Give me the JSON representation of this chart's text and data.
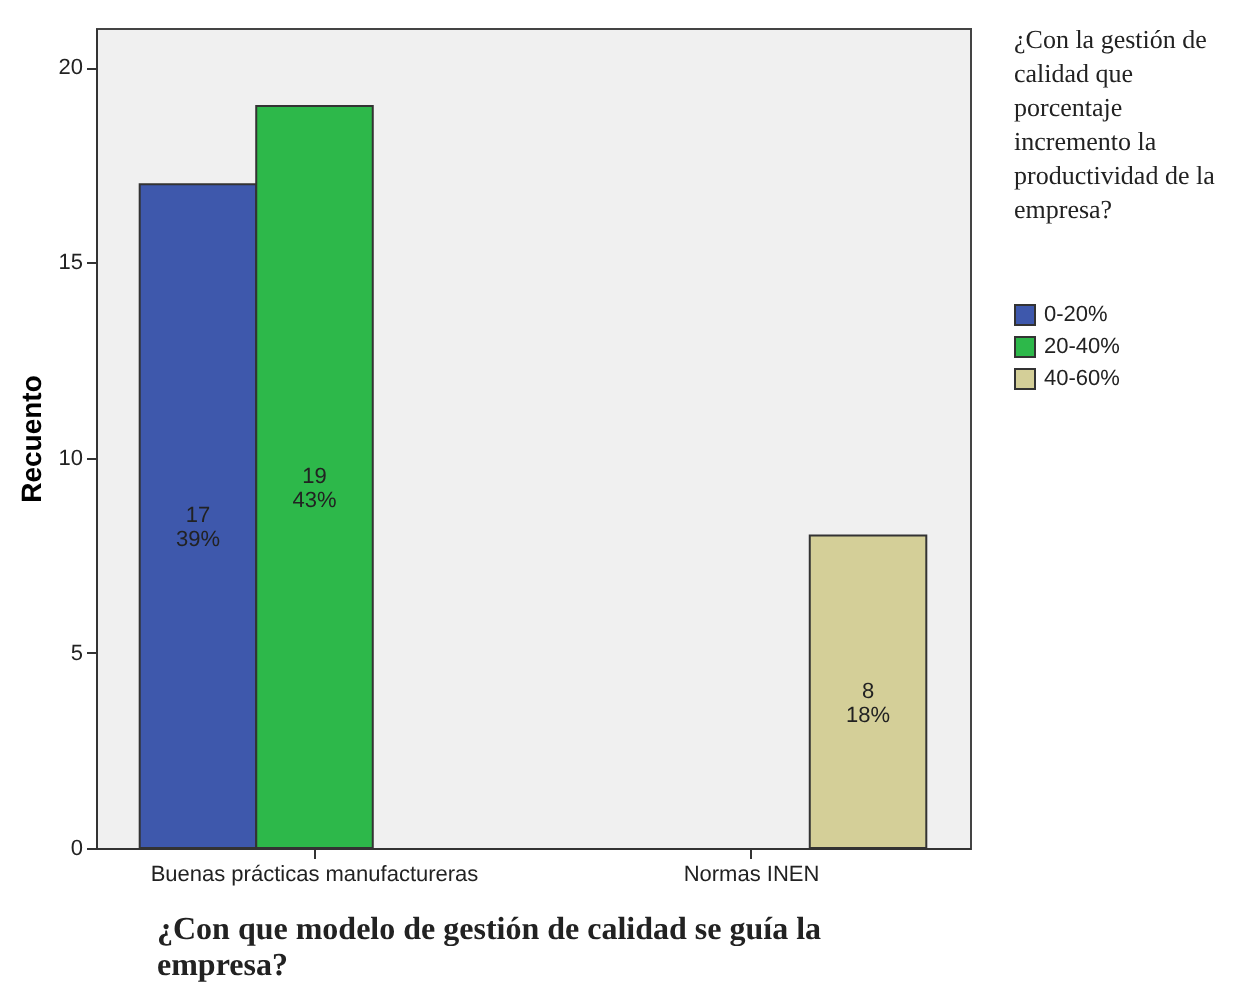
{
  "chart_data": {
    "type": "bar",
    "xlabel": "¿Con que modelo de gestión de calidad se guía la empresa?",
    "ylabel": "Recuento",
    "legend_title": "¿Con la gestión de calidad que porcentaje incremento la productividad de la empresa?",
    "categories": [
      "Buenas prácticas manufactureras",
      "Normas INEN"
    ],
    "series": [
      {
        "name": "0-20%",
        "color": "#3e58ac",
        "values": [
          17,
          null
        ],
        "value_labels": [
          "17\n39%",
          null
        ]
      },
      {
        "name": "20-40%",
        "color": "#2db84a",
        "values": [
          19,
          null
        ],
        "value_labels": [
          "19\n43%",
          null
        ]
      },
      {
        "name": "40-60%",
        "color": "#d4cf98",
        "values": [
          null,
          8
        ],
        "value_labels": [
          null,
          "8\n18%"
        ]
      }
    ],
    "ylim": [
      0,
      21
    ],
    "yticks": [
      0,
      5,
      10,
      15,
      20
    ],
    "grid": false,
    "legend": "right"
  }
}
